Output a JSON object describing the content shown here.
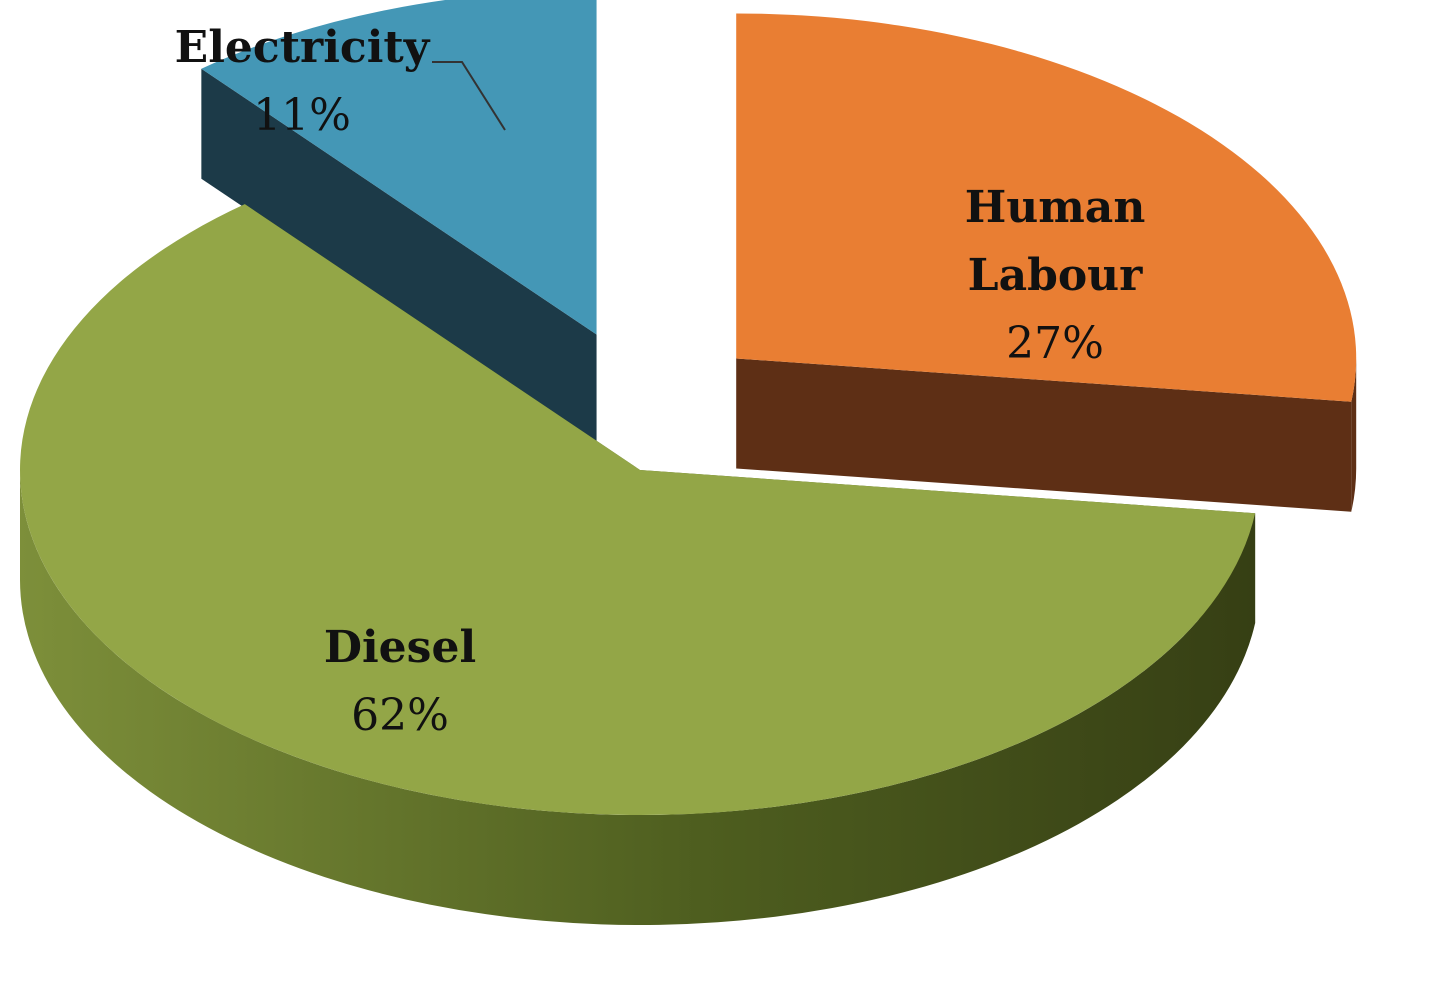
{
  "chart_data": {
    "type": "pie",
    "title": "",
    "categories": [
      "Human Labour",
      "Diesel",
      "Electricity"
    ],
    "values": [
      27,
      62,
      11
    ],
    "labels": [
      {
        "name_lines": [
          "Human",
          "Labour"
        ],
        "pct": "27%"
      },
      {
        "name_lines": [
          "Diesel"
        ],
        "pct": "62%"
      },
      {
        "name_lines": [
          "Electricity"
        ],
        "pct": "11%"
      }
    ],
    "colors": {
      "Human Labour": {
        "top": "#E97E33",
        "side": "#5E2F15"
      },
      "Diesel": {
        "top": "#93A647",
        "side": "#4F5F20"
      },
      "Electricity": {
        "top": "#4497B6",
        "side": "#1C3A48"
      }
    },
    "style": "3d-exploded",
    "legend": "none"
  }
}
